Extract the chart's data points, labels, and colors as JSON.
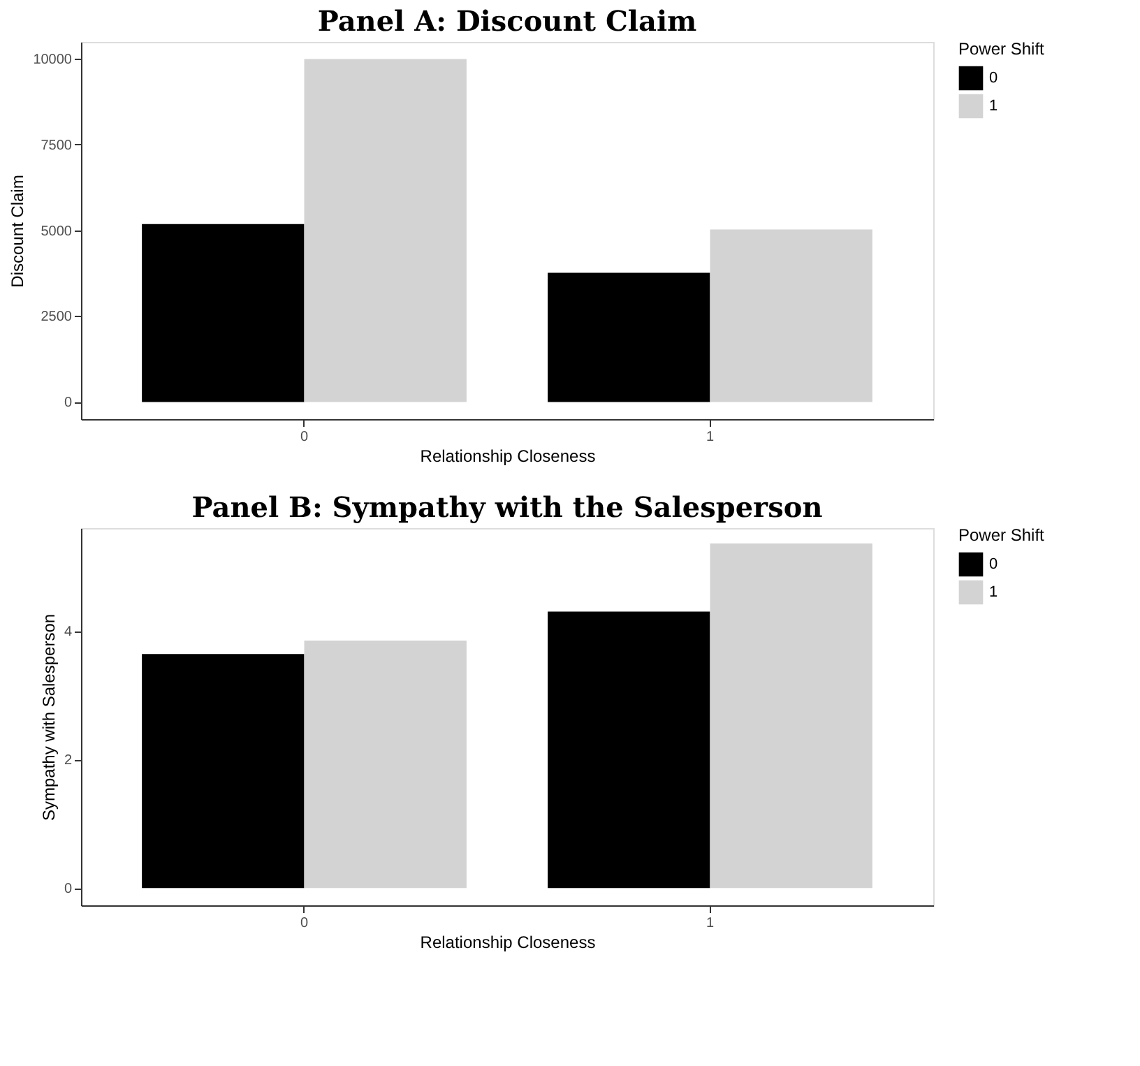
{
  "chart_data": [
    {
      "type": "bar",
      "title": "Panel A: Discount Claim",
      "xlabel": "Relationship Closeness",
      "ylabel": "Discount Claim",
      "legend_title": "Power Shift",
      "categories": [
        "0",
        "1"
      ],
      "series": [
        {
          "name": "0",
          "color": "#000000",
          "values": [
            5180,
            3760
          ]
        },
        {
          "name": "1",
          "color": "#d3d3d3",
          "values": [
            9980,
            5020
          ]
        }
      ],
      "ylim": [
        -500,
        10480
      ],
      "yticks": [
        0,
        2500,
        5000,
        7500,
        10000
      ],
      "grid": false,
      "legend": "right"
    },
    {
      "type": "bar",
      "title": "Panel B: Sympathy with the Salesperson",
      "xlabel": "Relationship Closeness",
      "ylabel": "Sympathy with Salesperson",
      "legend_title": "Power Shift",
      "categories": [
        "0",
        "1"
      ],
      "series": [
        {
          "name": "0",
          "color": "#000000",
          "values": [
            3.64,
            4.3
          ]
        },
        {
          "name": "1",
          "color": "#d3d3d3",
          "values": [
            3.85,
            5.36
          ]
        }
      ],
      "ylim": [
        -0.27,
        5.6
      ],
      "yticks": [
        0,
        2,
        4
      ],
      "grid": false,
      "legend": "right"
    }
  ]
}
